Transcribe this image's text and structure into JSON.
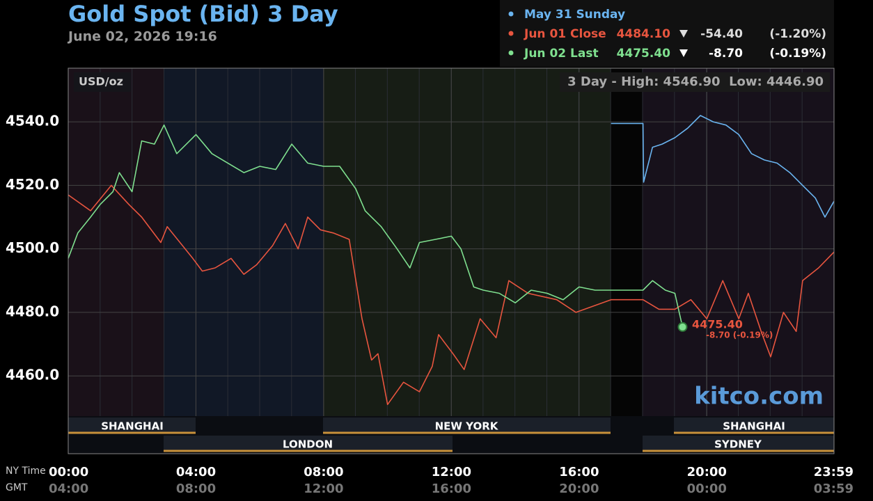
{
  "chart_data": {
    "type": "line",
    "title": "Gold Spot (Bid) 3 Day",
    "subtitle": "June 02, 2026 19:16",
    "unit_label": "USD/oz",
    "range_label": "3 Day - High: 4546.90  Low: 4446.90",
    "watermark": "kitco.com",
    "legend": [
      {
        "name": "May 31 Sunday"
      },
      {
        "name": "Jun 01 Close",
        "price": "4484.10",
        "change": "-54.40",
        "percent": "(-1.20%)"
      },
      {
        "name": "Jun 02 Last",
        "price": "4475.40",
        "change": "-8.70",
        "percent": "(-0.19%)"
      }
    ],
    "last_price_label": "4475.40",
    "last_change_label": "-8.70 (-0.19%)",
    "sessions": [
      "SHANGHAI",
      "LONDON",
      "NEW YORK",
      "SHANGHAI",
      "SYDNEY"
    ],
    "x_axis_row_labels": [
      "NY Time",
      "GMT"
    ],
    "xlim": [
      0,
      23.9833
    ],
    "xticks": [
      {
        "value": 0,
        "label": "00:00"
      },
      {
        "value": 4,
        "label": "04:00"
      },
      {
        "value": 8,
        "label": "08:00"
      },
      {
        "value": 12,
        "label": "12:00"
      },
      {
        "value": 16,
        "label": "16:00"
      },
      {
        "value": 20,
        "label": "20:00"
      },
      {
        "value": 23.9833,
        "label": "23:59"
      }
    ],
    "gmt_tick_labels": [
      "04:00",
      "08:00",
      "12:00",
      "16:00",
      "20:00",
      "00:00",
      "03:59"
    ],
    "ylim": [
      4435.5,
      4556.9
    ],
    "yticks": [
      {
        "value": 4460,
        "label": "4460.0"
      },
      {
        "value": 4480,
        "label": "4480.0"
      },
      {
        "value": 4500,
        "label": "4500.0"
      },
      {
        "value": 4520,
        "label": "4520.0"
      },
      {
        "value": 4540,
        "label": "4540.0"
      }
    ],
    "grid": true,
    "series": [
      {
        "name": "May 31 Sunday",
        "color": "#6ab4f0",
        "x": [
          17,
          18,
          18.02,
          18.3,
          18.6,
          19,
          19.4,
          19.8,
          20.2,
          20.6,
          21,
          21.4,
          21.8,
          22.2,
          22.6,
          23,
          23.4,
          23.7,
          23.9833
        ],
        "values": [
          4539.5,
          4539.5,
          4521,
          4532,
          4533,
          4535,
          4538,
          4542,
          4540,
          4539,
          4536,
          4530,
          4528,
          4527,
          4524,
          4520,
          4516,
          4510,
          4515
        ]
      },
      {
        "name": "Jun 01 Close",
        "color": "#e8553f",
        "x": [
          0,
          0.7,
          1.35,
          1.9,
          2.3,
          2.9,
          3.1,
          3.9,
          4.2,
          4.6,
          5.1,
          5.5,
          5.9,
          6.4,
          6.8,
          7.2,
          7.5,
          7.9,
          8.3,
          8.8,
          9.2,
          9.5,
          9.7,
          10,
          10.5,
          11,
          11.4,
          11.6,
          12.05,
          12.4,
          12.9,
          13.4,
          13.8,
          14.4,
          15.3,
          15.9,
          17,
          18,
          18.5,
          19,
          19.5,
          20,
          20.5,
          21,
          21.3,
          21.7,
          22,
          22.4,
          22.8,
          23,
          23.5,
          23.9833
        ],
        "values": [
          4517,
          4512,
          4520,
          4514,
          4510,
          4502,
          4507,
          4497,
          4493,
          4494,
          4497,
          4492,
          4495,
          4501,
          4508,
          4500,
          4510,
          4506,
          4505,
          4503,
          4478,
          4465,
          4467,
          4451,
          4458,
          4455,
          4463,
          4473,
          4467,
          4462,
          4478,
          4472,
          4490,
          4486,
          4484,
          4480,
          4484,
          4484,
          4481,
          4481,
          4484,
          4478,
          4490,
          4478,
          4486,
          4474,
          4466,
          4480,
          4474,
          4490,
          4494,
          4499
        ]
      },
      {
        "name": "Jun 02 Last",
        "color": "#7fe08f",
        "x": [
          0,
          0.3,
          0.7,
          1,
          1.4,
          1.6,
          2,
          2.3,
          2.7,
          3,
          3.4,
          4,
          4.5,
          5,
          5.5,
          6,
          6.5,
          7,
          7.5,
          8,
          8.5,
          9,
          9.3,
          9.8,
          10.3,
          10.7,
          11,
          11.5,
          12,
          12.3,
          12.7,
          13,
          13.5,
          14,
          14.5,
          15,
          15.5,
          16,
          16.5,
          17,
          18,
          18.3,
          18.7,
          19,
          19.24
        ],
        "values": [
          4497,
          4505,
          4510,
          4514,
          4518,
          4524,
          4518,
          4534,
          4533,
          4539,
          4530,
          4536,
          4530,
          4527,
          4524,
          4526,
          4525,
          4533,
          4527,
          4526,
          4526,
          4519,
          4512,
          4507,
          4500,
          4494,
          4502,
          4503,
          4504,
          4500,
          4488,
          4487,
          4486,
          4483,
          4487,
          4486,
          4484,
          4488,
          4487,
          4487,
          4487,
          4490,
          4487,
          4486,
          4475.4
        ]
      }
    ]
  }
}
